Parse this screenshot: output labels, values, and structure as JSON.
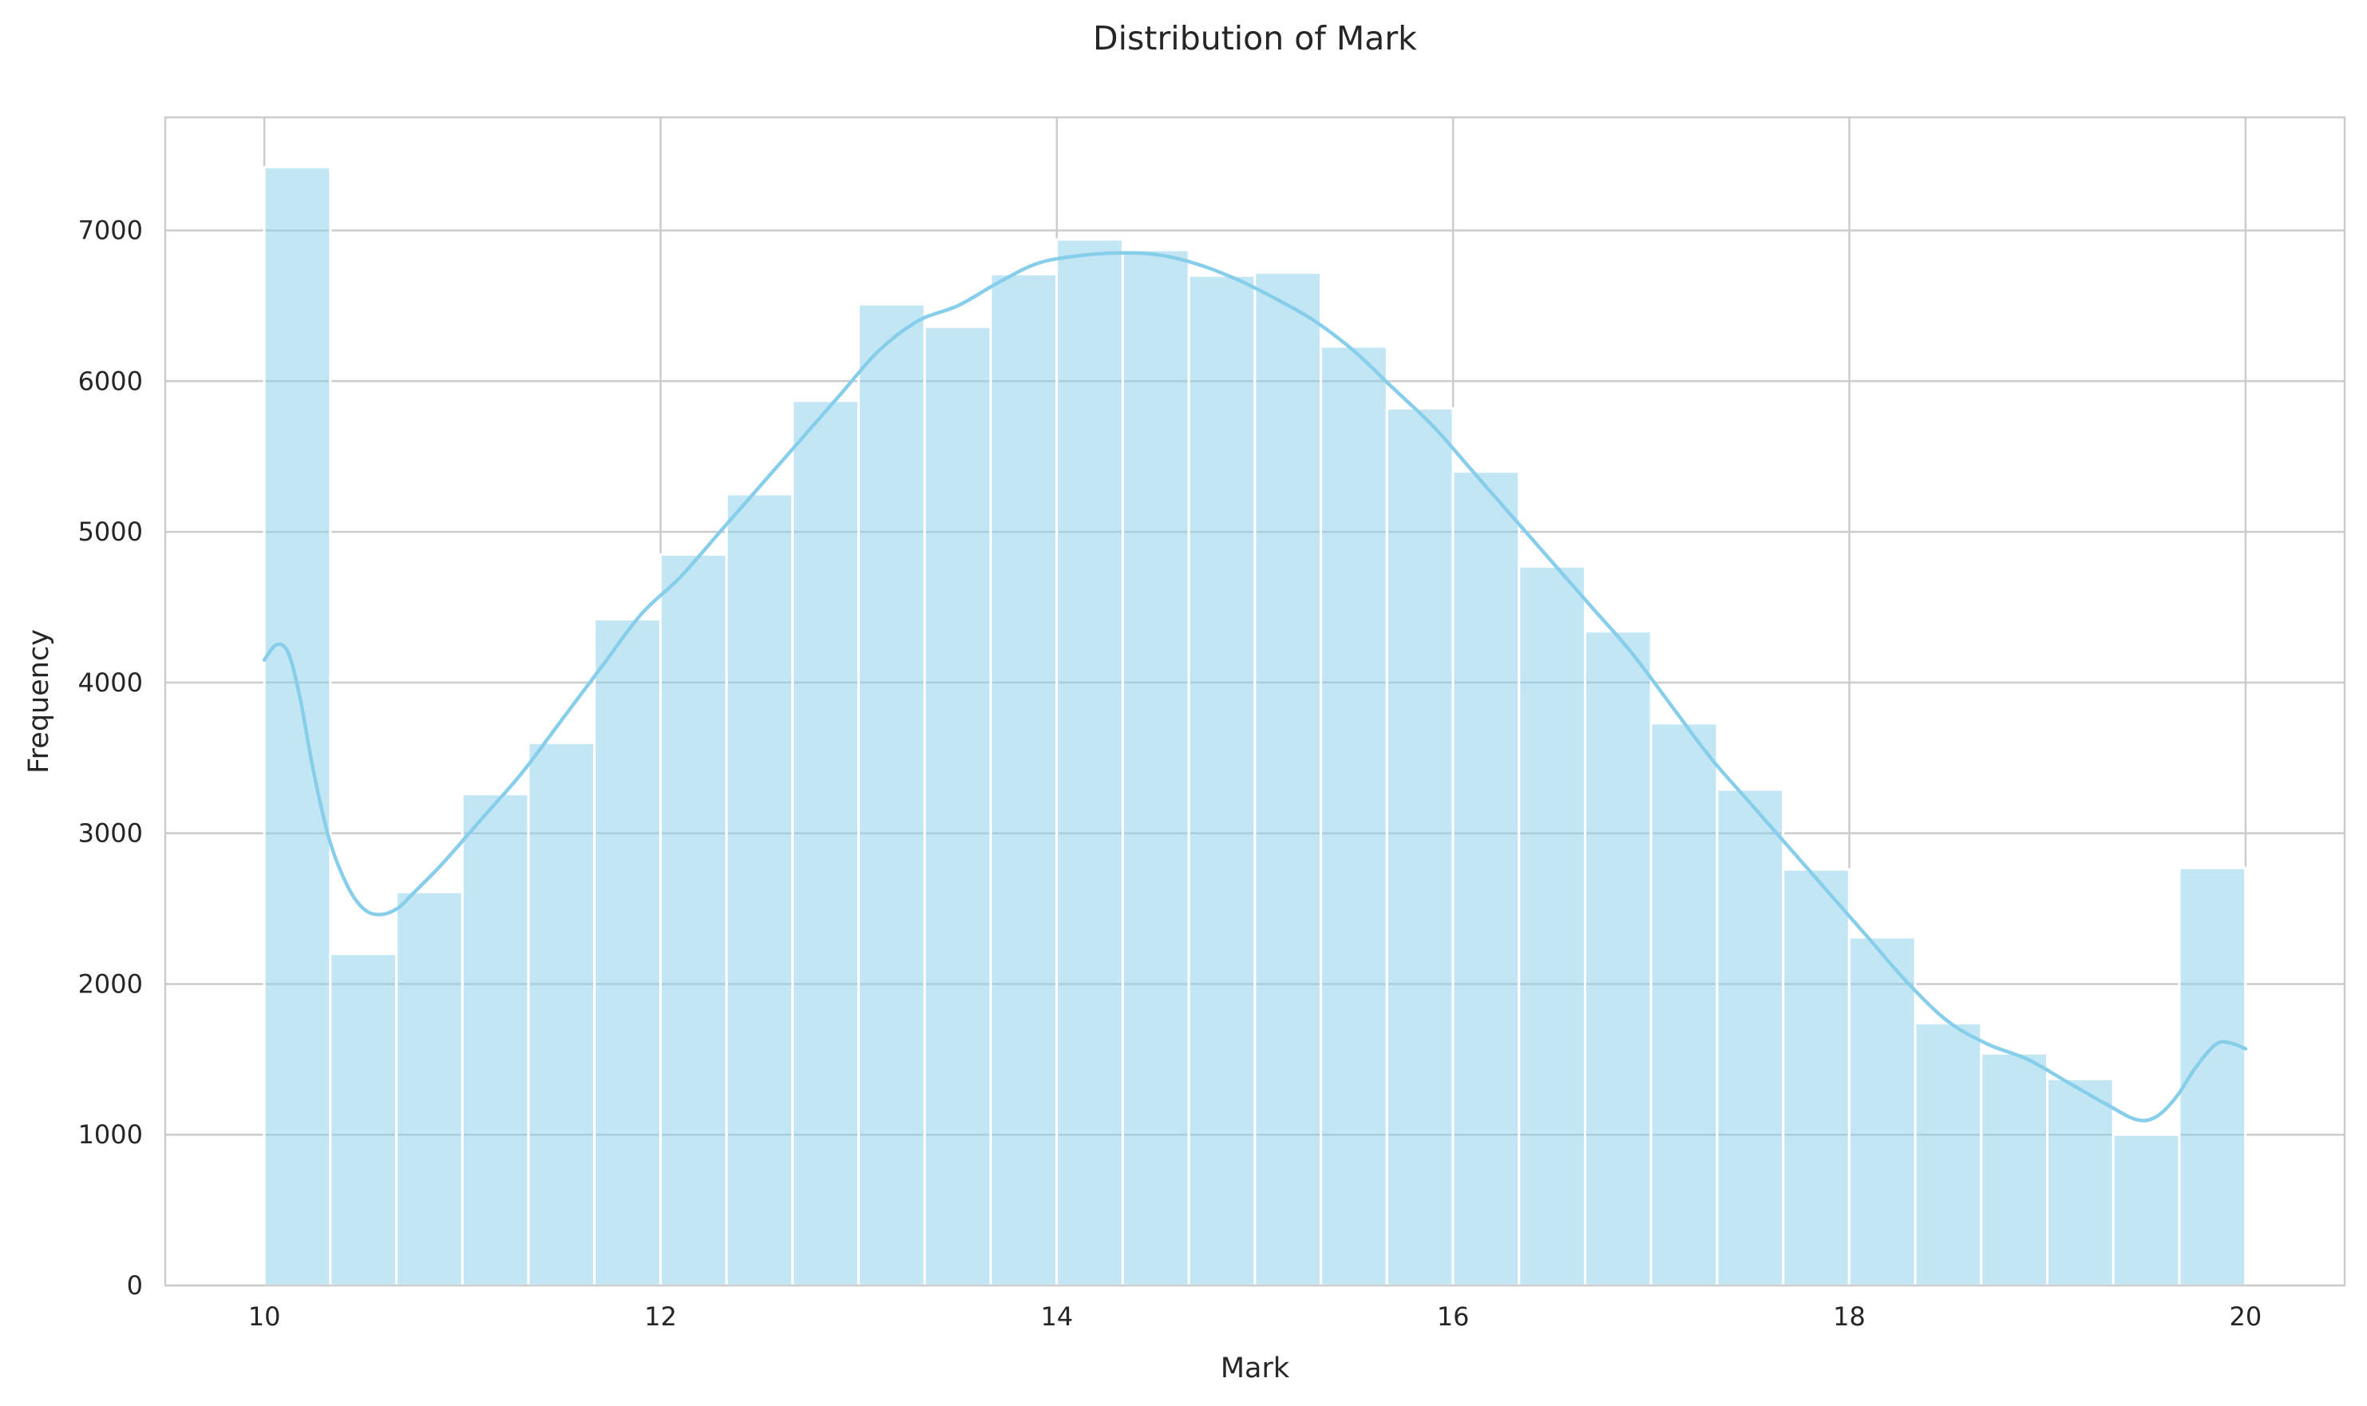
{
  "chart_data": {
    "type": "bar",
    "title": "Distribution of Mark",
    "xlabel": "Mark",
    "ylabel": "Frequency",
    "xlim": [
      9.5,
      20.5
    ],
    "ylim": [
      0,
      7750
    ],
    "xticks": [
      10,
      12,
      14,
      16,
      18,
      20
    ],
    "yticks": [
      0,
      1000,
      2000,
      3000,
      4000,
      5000,
      6000,
      7000
    ],
    "grid": true,
    "bin_start": 10,
    "bin_width": 0.3333,
    "values": [
      7420,
      2200,
      2610,
      3260,
      3600,
      4420,
      4850,
      5250,
      5870,
      6510,
      6360,
      6710,
      6940,
      6870,
      6700,
      6720,
      6230,
      5820,
      5400,
      4770,
      4340,
      3730,
      3290,
      2760,
      2310,
      1740,
      1540,
      1370,
      1000,
      2770
    ],
    "kde": {
      "x": [
        10.0,
        10.06,
        10.12,
        10.18,
        10.25,
        10.33,
        10.42,
        10.5,
        10.58,
        10.67,
        10.75,
        10.9,
        11.1,
        11.3,
        11.5,
        11.7,
        11.9,
        12.1,
        12.3,
        12.5,
        12.7,
        12.9,
        13.1,
        13.3,
        13.5,
        13.7,
        13.9,
        14.1,
        14.3,
        14.5,
        14.7,
        14.9,
        15.1,
        15.3,
        15.5,
        15.7,
        15.9,
        16.1,
        16.3,
        16.5,
        16.7,
        16.9,
        17.1,
        17.3,
        17.5,
        17.7,
        17.9,
        18.1,
        18.3,
        18.5,
        18.7,
        18.9,
        19.1,
        19.3,
        19.45,
        19.55,
        19.65,
        19.75,
        19.85,
        19.92,
        20.0
      ],
      "y": [
        4150,
        4250,
        4200,
        3900,
        3400,
        2950,
        2650,
        2500,
        2460,
        2500,
        2600,
        2800,
        3100,
        3400,
        3750,
        4100,
        4450,
        4700,
        5000,
        5300,
        5600,
        5900,
        6200,
        6400,
        6500,
        6650,
        6780,
        6830,
        6850,
        6840,
        6780,
        6680,
        6550,
        6400,
        6200,
        5950,
        5700,
        5400,
        5100,
        4800,
        4500,
        4200,
        3850,
        3500,
        3200,
        2900,
        2600,
        2300,
        2000,
        1750,
        1600,
        1500,
        1350,
        1200,
        1100,
        1120,
        1250,
        1450,
        1600,
        1610,
        1570
      ]
    },
    "bar_color": "#87CEEB",
    "line_color": "#87CEEB",
    "legend": "none"
  }
}
